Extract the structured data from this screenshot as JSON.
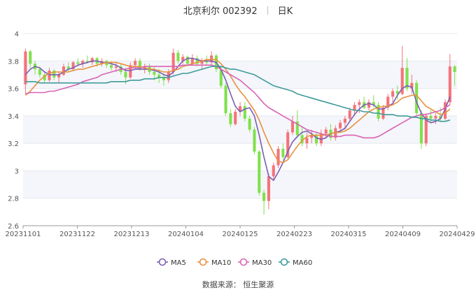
{
  "header": {
    "stock": "北京利尔 002392",
    "period": "日K"
  },
  "source": "数据来源： 恒生聚源",
  "colors": {
    "up": "#f4737a",
    "down": "#7fe14b",
    "MA5": "#7b5eb5",
    "MA10": "#e8913e",
    "MA30": "#d963b4",
    "MA60": "#3f9a9a"
  },
  "chart_data": {
    "type": "line",
    "subtype": "candlestick",
    "ylim": [
      2.6,
      4.0
    ],
    "yticks": [
      "4",
      "3.8",
      "3.6",
      "3.4",
      "3.2",
      "3",
      "2.8",
      "2.6"
    ],
    "xticks": [
      "20231101",
      "20231122",
      "20231213",
      "20240104",
      "20240125",
      "20240223",
      "20240315",
      "20240409",
      "20240429"
    ],
    "ohlc": [
      [
        3.63,
        3.89,
        3.56,
        3.87
      ],
      [
        3.87,
        3.88,
        3.75,
        3.78
      ],
      [
        3.78,
        3.8,
        3.7,
        3.74
      ],
      [
        3.74,
        3.76,
        3.68,
        3.7
      ],
      [
        3.7,
        3.72,
        3.64,
        3.66
      ],
      [
        3.66,
        3.75,
        3.65,
        3.73
      ],
      [
        3.73,
        3.74,
        3.66,
        3.68
      ],
      [
        3.68,
        3.72,
        3.64,
        3.7
      ],
      [
        3.7,
        3.78,
        3.69,
        3.76
      ],
      [
        3.76,
        3.79,
        3.72,
        3.74
      ],
      [
        3.74,
        3.8,
        3.73,
        3.79
      ],
      [
        3.79,
        3.82,
        3.76,
        3.78
      ],
      [
        3.78,
        3.81,
        3.75,
        3.8
      ],
      [
        3.8,
        3.84,
        3.78,
        3.79
      ],
      [
        3.79,
        3.83,
        3.77,
        3.82
      ],
      [
        3.82,
        3.83,
        3.76,
        3.78
      ],
      [
        3.78,
        3.82,
        3.76,
        3.8
      ],
      [
        3.8,
        3.81,
        3.75,
        3.77
      ],
      [
        3.77,
        3.8,
        3.73,
        3.75
      ],
      [
        3.75,
        3.79,
        3.72,
        3.76
      ],
      [
        3.76,
        3.78,
        3.7,
        3.72
      ],
      [
        3.72,
        3.75,
        3.63,
        3.68
      ],
      [
        3.68,
        3.79,
        3.67,
        3.77
      ],
      [
        3.77,
        3.82,
        3.75,
        3.8
      ],
      [
        3.8,
        3.82,
        3.73,
        3.74
      ],
      [
        3.74,
        3.78,
        3.71,
        3.76
      ],
      [
        3.76,
        3.78,
        3.7,
        3.72
      ],
      [
        3.72,
        3.76,
        3.66,
        3.7
      ],
      [
        3.7,
        3.74,
        3.64,
        3.68
      ],
      [
        3.68,
        3.71,
        3.62,
        3.66
      ],
      [
        3.66,
        3.74,
        3.64,
        3.72
      ],
      [
        3.72,
        3.89,
        3.7,
        3.86
      ],
      [
        3.86,
        3.88,
        3.78,
        3.8
      ],
      [
        3.8,
        3.85,
        3.78,
        3.83
      ],
      [
        3.83,
        3.84,
        3.76,
        3.78
      ],
      [
        3.78,
        3.85,
        3.77,
        3.82
      ],
      [
        3.82,
        3.84,
        3.76,
        3.78
      ],
      [
        3.78,
        3.82,
        3.74,
        3.8
      ],
      [
        3.8,
        3.84,
        3.77,
        3.79
      ],
      [
        3.79,
        3.87,
        3.77,
        3.84
      ],
      [
        3.84,
        3.85,
        3.72,
        3.74
      ],
      [
        3.74,
        3.76,
        3.6,
        3.62
      ],
      [
        3.62,
        3.64,
        3.4,
        3.42
      ],
      [
        3.42,
        3.45,
        3.32,
        3.34
      ],
      [
        3.34,
        3.45,
        3.33,
        3.43
      ],
      [
        3.43,
        3.5,
        3.4,
        3.47
      ],
      [
        3.47,
        3.5,
        3.36,
        3.38
      ],
      [
        3.38,
        3.4,
        3.28,
        3.3
      ],
      [
        3.3,
        3.32,
        3.12,
        3.14
      ],
      [
        3.14,
        3.15,
        2.82,
        2.84
      ],
      [
        2.84,
        2.86,
        2.68,
        2.78
      ],
      [
        2.78,
        2.98,
        2.72,
        2.96
      ],
      [
        2.96,
        3.06,
        2.93,
        3.04
      ],
      [
        3.04,
        3.18,
        3.02,
        3.16
      ],
      [
        3.16,
        3.2,
        3.08,
        3.1
      ],
      [
        3.1,
        3.3,
        3.09,
        3.28
      ],
      [
        3.28,
        3.4,
        3.26,
        3.36
      ],
      [
        3.36,
        3.44,
        3.24,
        3.26
      ],
      [
        3.26,
        3.32,
        3.18,
        3.2
      ],
      [
        3.2,
        3.28,
        3.16,
        3.24
      ],
      [
        3.24,
        3.3,
        3.2,
        3.26
      ],
      [
        3.26,
        3.28,
        3.18,
        3.2
      ],
      [
        3.2,
        3.3,
        3.18,
        3.27
      ],
      [
        3.27,
        3.32,
        3.24,
        3.3
      ],
      [
        3.3,
        3.34,
        3.22,
        3.24
      ],
      [
        3.24,
        3.33,
        3.22,
        3.31
      ],
      [
        3.31,
        3.37,
        3.29,
        3.35
      ],
      [
        3.35,
        3.4,
        3.3,
        3.38
      ],
      [
        3.38,
        3.46,
        3.36,
        3.44
      ],
      [
        3.44,
        3.5,
        3.4,
        3.48
      ],
      [
        3.48,
        3.52,
        3.42,
        3.5
      ],
      [
        3.5,
        3.54,
        3.45,
        3.46
      ],
      [
        3.46,
        3.52,
        3.44,
        3.5
      ],
      [
        3.5,
        3.55,
        3.46,
        3.48
      ],
      [
        3.48,
        3.5,
        3.36,
        3.38
      ],
      [
        3.38,
        3.48,
        3.37,
        3.46
      ],
      [
        3.46,
        3.56,
        3.44,
        3.54
      ],
      [
        3.54,
        3.6,
        3.5,
        3.58
      ],
      [
        3.58,
        3.62,
        3.52,
        3.56
      ],
      [
        3.56,
        3.91,
        3.55,
        3.75
      ],
      [
        3.75,
        3.82,
        3.58,
        3.6
      ],
      [
        3.6,
        3.7,
        3.56,
        3.64
      ],
      [
        3.64,
        3.66,
        3.4,
        3.42
      ],
      [
        3.42,
        3.44,
        3.16,
        3.2
      ],
      [
        3.2,
        3.42,
        3.18,
        3.4
      ],
      [
        3.4,
        3.44,
        3.35,
        3.38
      ],
      [
        3.38,
        3.42,
        3.34,
        3.4
      ],
      [
        3.4,
        3.46,
        3.36,
        3.38
      ],
      [
        3.38,
        3.52,
        3.37,
        3.5
      ],
      [
        3.5,
        3.85,
        3.48,
        3.76
      ],
      [
        3.76,
        3.77,
        3.62,
        3.72
      ]
    ],
    "series": [
      {
        "name": "MA5",
        "values": [
          3.7,
          3.74,
          3.76,
          3.75,
          3.72,
          3.7,
          3.7,
          3.7,
          3.72,
          3.74,
          3.75,
          3.77,
          3.78,
          3.79,
          3.8,
          3.8,
          3.79,
          3.79,
          3.78,
          3.77,
          3.75,
          3.73,
          3.73,
          3.74,
          3.74,
          3.74,
          3.74,
          3.73,
          3.72,
          3.7,
          3.69,
          3.72,
          3.76,
          3.8,
          3.82,
          3.82,
          3.81,
          3.8,
          3.8,
          3.8,
          3.79,
          3.74,
          3.66,
          3.56,
          3.47,
          3.43,
          3.45,
          3.46,
          3.4,
          3.26,
          3.1,
          2.96,
          2.93,
          2.99,
          3.06,
          3.14,
          3.21,
          3.25,
          3.28,
          3.29,
          3.27,
          3.24,
          3.23,
          3.24,
          3.27,
          3.28,
          3.29,
          3.31,
          3.36,
          3.41,
          3.45,
          3.48,
          3.49,
          3.48,
          3.45,
          3.45,
          3.47,
          3.49,
          3.55,
          3.6,
          3.62,
          3.61,
          3.5,
          3.42,
          3.37,
          3.35,
          3.36,
          3.38,
          3.45,
          3.54
        ]
      },
      {
        "name": "MA10",
        "values": [
          3.55,
          3.58,
          3.62,
          3.66,
          3.69,
          3.71,
          3.72,
          3.72,
          3.72,
          3.72,
          3.73,
          3.74,
          3.74,
          3.75,
          3.76,
          3.77,
          3.78,
          3.79,
          3.79,
          3.79,
          3.78,
          3.77,
          3.76,
          3.76,
          3.76,
          3.75,
          3.74,
          3.74,
          3.73,
          3.72,
          3.72,
          3.73,
          3.74,
          3.76,
          3.77,
          3.78,
          3.79,
          3.8,
          3.81,
          3.81,
          3.81,
          3.78,
          3.74,
          3.69,
          3.63,
          3.58,
          3.54,
          3.49,
          3.44,
          3.37,
          3.28,
          3.2,
          3.13,
          3.07,
          3.06,
          3.08,
          3.13,
          3.18,
          3.22,
          3.25,
          3.26,
          3.26,
          3.26,
          3.26,
          3.27,
          3.28,
          3.28,
          3.29,
          3.31,
          3.34,
          3.37,
          3.4,
          3.43,
          3.45,
          3.46,
          3.47,
          3.47,
          3.48,
          3.5,
          3.53,
          3.54,
          3.55,
          3.55,
          3.51,
          3.47,
          3.45,
          3.43,
          3.41,
          3.42,
          3.45
        ]
      },
      {
        "name": "MA30",
        "values": [
          3.56,
          3.57,
          3.57,
          3.57,
          3.57,
          3.58,
          3.58,
          3.59,
          3.6,
          3.61,
          3.62,
          3.63,
          3.65,
          3.66,
          3.67,
          3.68,
          3.7,
          3.71,
          3.72,
          3.73,
          3.74,
          3.74,
          3.75,
          3.75,
          3.75,
          3.76,
          3.76,
          3.76,
          3.76,
          3.76,
          3.76,
          3.76,
          3.76,
          3.77,
          3.77,
          3.77,
          3.77,
          3.77,
          3.77,
          3.77,
          3.76,
          3.74,
          3.72,
          3.7,
          3.68,
          3.66,
          3.63,
          3.6,
          3.57,
          3.53,
          3.49,
          3.46,
          3.44,
          3.42,
          3.4,
          3.38,
          3.36,
          3.34,
          3.32,
          3.3,
          3.29,
          3.28,
          3.27,
          3.26,
          3.25,
          3.25,
          3.25,
          3.26,
          3.26,
          3.26,
          3.25,
          3.24,
          3.24,
          3.24,
          3.25,
          3.27,
          3.29,
          3.31,
          3.33,
          3.35,
          3.37,
          3.39,
          3.4,
          3.41,
          3.41,
          3.42,
          3.43,
          3.44,
          3.46,
          3.48
        ]
      },
      {
        "name": "MA60",
        "values": [
          3.65,
          3.65,
          3.65,
          3.64,
          3.64,
          3.64,
          3.64,
          3.64,
          3.64,
          3.64,
          3.64,
          3.64,
          3.64,
          3.64,
          3.64,
          3.64,
          3.64,
          3.64,
          3.65,
          3.65,
          3.65,
          3.65,
          3.66,
          3.66,
          3.66,
          3.67,
          3.67,
          3.67,
          3.68,
          3.68,
          3.68,
          3.69,
          3.7,
          3.71,
          3.71,
          3.72,
          3.73,
          3.74,
          3.75,
          3.76,
          3.76,
          3.76,
          3.75,
          3.74,
          3.74,
          3.73,
          3.72,
          3.71,
          3.7,
          3.68,
          3.66,
          3.64,
          3.62,
          3.61,
          3.6,
          3.59,
          3.58,
          3.56,
          3.55,
          3.54,
          3.53,
          3.52,
          3.51,
          3.5,
          3.49,
          3.48,
          3.47,
          3.46,
          3.45,
          3.44,
          3.44,
          3.43,
          3.43,
          3.42,
          3.42,
          3.41,
          3.41,
          3.41,
          3.4,
          3.4,
          3.4,
          3.39,
          3.39,
          3.38,
          3.38,
          3.37,
          3.37,
          3.36,
          3.36,
          3.37
        ]
      }
    ],
    "legend": [
      "MA5",
      "MA10",
      "MA30",
      "MA60"
    ],
    "legend_position": "bottom",
    "grid": true
  }
}
